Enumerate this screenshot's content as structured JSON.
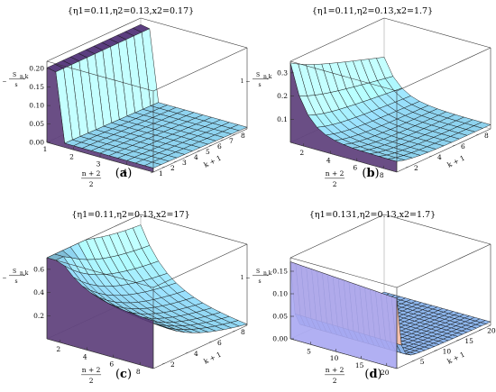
{
  "figure": {
    "width": 550,
    "height": 435
  },
  "chart_data": [
    {
      "type": "surface",
      "panel": "a",
      "caption_letter": "a",
      "title": "{η1=0.11,η2=0.13,x2=0.17}",
      "zlabel_num": "S",
      "zlabel_sub": "n,k",
      "zlabel_prefix": "1 −",
      "zlabel_den": "s",
      "xlabel_num": "n + 2",
      "xlabel_den": "2",
      "ylabel": "k + 1",
      "zticks": [
        "0.00",
        "0.05",
        "0.10",
        "0.15",
        "0.20"
      ],
      "xticks": [
        "1",
        "2",
        "3",
        "4"
      ],
      "yticks": [
        "1",
        "2",
        "3",
        "4",
        "5",
        "6",
        "7",
        "8"
      ],
      "xrange": [
        1,
        5
      ],
      "yrange": [
        1,
        9
      ],
      "zrange": [
        0,
        0.22
      ],
      "surface_color": "#8fd4f0",
      "edge_color": "#5a3b78",
      "shape": "step"
    },
    {
      "type": "surface",
      "panel": "b",
      "caption_letter": "b",
      "title": "{η1=0.11,η2=0.13,x2=1.7}",
      "zlabel_num": "S",
      "zlabel_sub": "n,k",
      "zlabel_prefix": "1 −",
      "zlabel_den": "s",
      "xlabel_num": "n + 2",
      "xlabel_den": "2",
      "ylabel": "k + 1",
      "zticks": [
        "0.1",
        "0.2",
        "0.3"
      ],
      "xticks": [
        "2",
        "4",
        "6",
        "8"
      ],
      "yticks": [
        "2",
        "4",
        "6",
        "8"
      ],
      "xrange": [
        1,
        9
      ],
      "yrange": [
        1,
        9
      ],
      "zrange": [
        0,
        0.35
      ],
      "surface_color": "#8fd4f0",
      "edge_color": "#5a3b78",
      "shape": "decay"
    },
    {
      "type": "surface",
      "panel": "c",
      "caption_letter": "c",
      "title": "{η1=0.11,η2=0.13,x2=17}",
      "zlabel_num": "S",
      "zlabel_sub": "n,k",
      "zlabel_prefix": "1 −",
      "zlabel_den": "s",
      "xlabel_num": "n + 2",
      "xlabel_den": "2",
      "ylabel": "k + 1",
      "zticks": [
        "0.2",
        "0.4",
        "0.6"
      ],
      "xticks": [
        "2",
        "4",
        "6",
        "8"
      ],
      "yticks": [
        "2",
        "4",
        "6",
        "8"
      ],
      "xrange": [
        1,
        9
      ],
      "yrange": [
        1,
        9
      ],
      "zrange": [
        0,
        0.7
      ],
      "surface_color": "#8fd4f0",
      "edge_color": "#5a3b78",
      "shape": "bowl"
    },
    {
      "type": "surface",
      "panel": "d",
      "caption_letter": "d",
      "title": "{η1=0.131,η2=0.13,x2=1.7}",
      "zlabel_num": "S",
      "zlabel_sub": "n,k",
      "zlabel_prefix": "1 −",
      "zlabel_den": "s",
      "xlabel_num": "n + 2",
      "xlabel_den": "2",
      "ylabel": "k + 1",
      "zticks": [
        "0.00",
        "0.05",
        "0.10",
        "0.15"
      ],
      "xticks": [
        "5",
        "10",
        "15",
        "20"
      ],
      "yticks": [
        "5",
        "10",
        "15",
        "20"
      ],
      "xrange": [
        1,
        22
      ],
      "yrange": [
        1,
        22
      ],
      "zrange": [
        0,
        0.18
      ],
      "surface_color": "#8fb8f0",
      "edge_color": "#f2b8a0",
      "shape": "wall"
    }
  ]
}
